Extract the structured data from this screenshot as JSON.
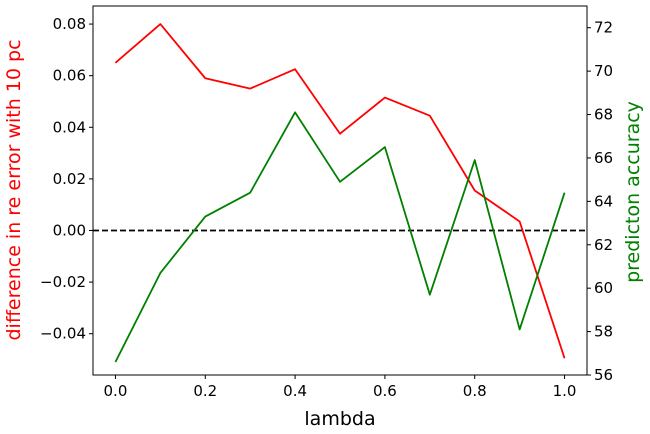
{
  "colors": {
    "left_series": "#ff0000",
    "right_series": "#008000",
    "reference_line": "#000000"
  },
  "chart_data": {
    "type": "line",
    "xlabel": "lambda",
    "ylabel_left": "difference in re error with 10 pc",
    "ylabel_right": "predicton accuracy",
    "x": [
      0.0,
      0.1,
      0.2,
      0.3,
      0.4,
      0.5,
      0.6,
      0.7,
      0.8,
      0.9,
      1.0
    ],
    "xlim": [
      -0.05,
      1.05
    ],
    "ylim_left": [
      -0.056,
      0.087
    ],
    "ylim_right": [
      56.0,
      73.0
    ],
    "xticks": [
      "0.0",
      "0.2",
      "0.4",
      "0.6",
      "0.8",
      "1.0"
    ],
    "yticks_left": [
      "−0.04",
      "−0.02",
      "0.00",
      "0.02",
      "0.04",
      "0.06",
      "0.08"
    ],
    "yticks_right": [
      "56",
      "58",
      "60",
      "62",
      "64",
      "66",
      "68",
      "70",
      "72"
    ],
    "reference_line": {
      "axis": "left",
      "y": 0.0,
      "style": "dashed"
    },
    "series": [
      {
        "axis": "left",
        "color": "red",
        "values": [
          0.065,
          0.08,
          0.059,
          0.055,
          0.0625,
          0.0375,
          0.0515,
          0.0445,
          0.0155,
          0.0035,
          -0.0495
        ]
      },
      {
        "axis": "right",
        "color": "green",
        "values": [
          56.6,
          60.7,
          63.3,
          64.4,
          68.1,
          64.9,
          66.5,
          59.7,
          65.9,
          58.1,
          64.4
        ]
      }
    ]
  }
}
